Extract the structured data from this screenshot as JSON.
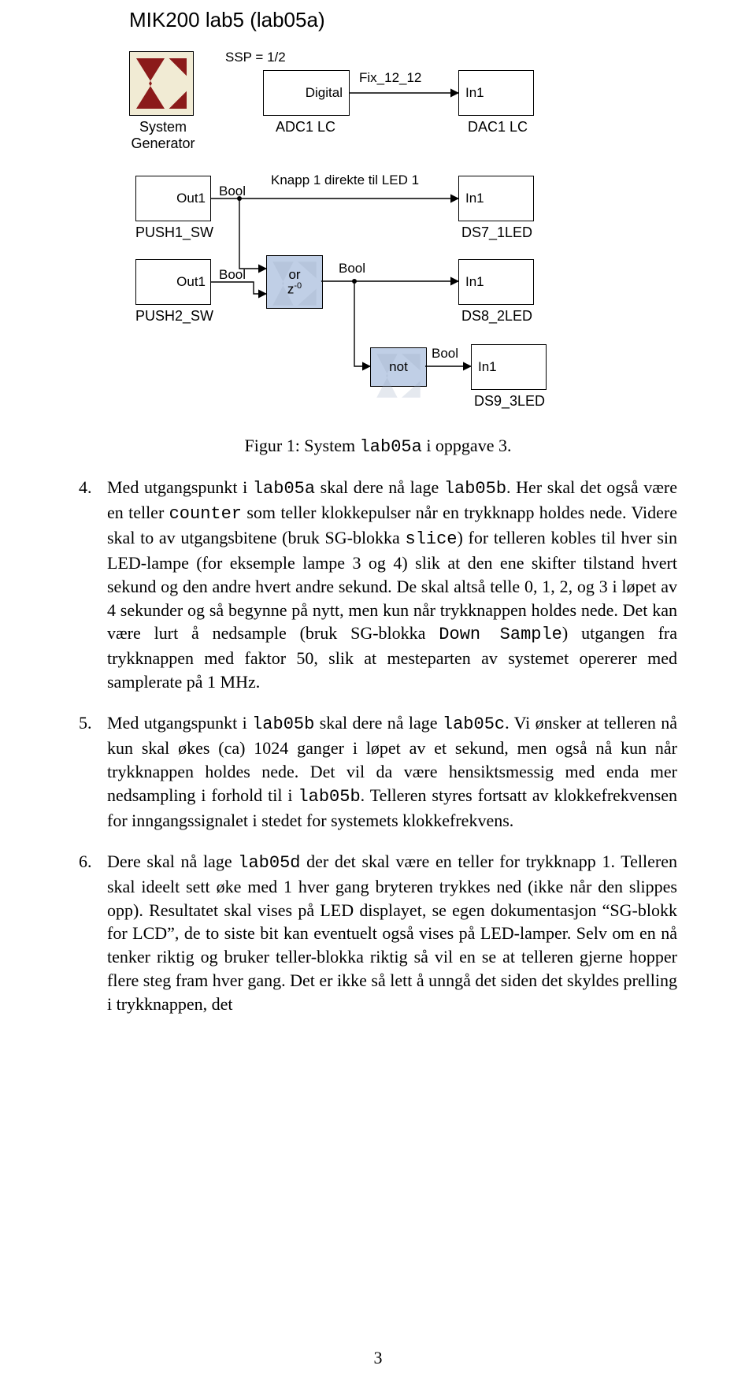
{
  "figure": {
    "title": "MIK200 lab5 (lab05a)",
    "caption_prefix": "Figur 1: System ",
    "caption_code": "lab05a",
    "caption_suffix": " i oppgave 3.",
    "diagram": {
      "type": "flowchart",
      "background_color": "#ffffff",
      "sg_icon_bg": "#f1ebd4",
      "sg_icon_logo": "#8b1a1a",
      "xblock_bg": "#c0cfe6",
      "labels": {
        "ssp": "SSP = 1/2",
        "system_generator": "System\nGenerator",
        "adc1_lc": "ADC1 LC",
        "dac1_lc": "DAC1 LC",
        "knapp": "Knapp 1 direkte til LED 1",
        "push1_sw": "PUSH1_SW",
        "push2_sw": "PUSH2_SW",
        "ds7_1led": "DS7_1LED",
        "ds8_2led": "DS8_2LED",
        "ds9_3led": "DS9_3LED",
        "bool": "Bool",
        "fix_12_12": "Fix_12_12",
        "digital": "Digital",
        "out1": "Out1",
        "in1": "In1",
        "or": "or",
        "z0": "z",
        "z0_exp": "-0",
        "not": "not"
      }
    }
  },
  "items": [
    {
      "num": "4.",
      "parts": [
        {
          "t": "text",
          "v": "Med utgangspunkt i "
        },
        {
          "t": "mono",
          "v": "lab05a"
        },
        {
          "t": "text",
          "v": " skal dere nå lage "
        },
        {
          "t": "mono",
          "v": "lab05b"
        },
        {
          "t": "text",
          "v": ". Her skal det også være en teller "
        },
        {
          "t": "mono",
          "v": "counter"
        },
        {
          "t": "text",
          "v": " som teller klokkepulser når en trykknapp holdes nede. Videre skal to av utgangsbitene (bruk SG-blokka "
        },
        {
          "t": "mono",
          "v": "slice"
        },
        {
          "t": "text",
          "v": ") for telleren kobles til hver sin LED-lampe (for eksemple lampe 3 og 4) slik at den ene skifter tilstand hvert sekund og den andre hvert andre sekund. De skal altså telle 0, 1, 2, og 3 i løpet av 4 sekunder og så begynne på nytt, men kun når trykknappen holdes nede. Det kan være lurt å nedsample (bruk SG-blokka "
        },
        {
          "t": "mono",
          "v": "Down Sample"
        },
        {
          "t": "text",
          "v": ") utgangen fra trykknappen med faktor 50, slik at mesteparten av systemet opererer med samplerate på 1 MHz."
        }
      ]
    },
    {
      "num": "5.",
      "parts": [
        {
          "t": "text",
          "v": "Med utgangspunkt i "
        },
        {
          "t": "mono",
          "v": "lab05b"
        },
        {
          "t": "text",
          "v": " skal dere nå lage "
        },
        {
          "t": "mono",
          "v": "lab05c"
        },
        {
          "t": "text",
          "v": ". Vi ønsker at telleren nå kun skal økes (ca) 1024 ganger i løpet av et sekund, men også nå kun når trykknappen holdes nede. Det vil da være hensiktsmessig med enda mer nedsampling i forhold til i "
        },
        {
          "t": "mono",
          "v": "lab05b"
        },
        {
          "t": "text",
          "v": ". Telleren styres fortsatt av klokkefrekvensen for inngangssignalet i stedet for systemets klokkefrekvens."
        }
      ]
    },
    {
      "num": "6.",
      "parts": [
        {
          "t": "text",
          "v": "Dere skal nå lage "
        },
        {
          "t": "mono",
          "v": "lab05d"
        },
        {
          "t": "text",
          "v": " der det skal være en teller for trykknapp 1. Telleren skal ideelt sett øke med 1 hver gang bryteren trykkes ned (ikke når den slippes opp). Resultatet skal vises på LED displayet, se egen dokumentasjon “SG-blokk for LCD”, de to siste bit kan eventuelt også vises på LED-lamper. Selv om en nå tenker riktig og bruker teller-blokka riktig så vil en se at telleren gjerne hopper flere steg fram hver gang. Det er ikke så lett å unngå det siden det skyldes prelling i trykknappen, det"
        }
      ]
    }
  ],
  "page_number": "3"
}
